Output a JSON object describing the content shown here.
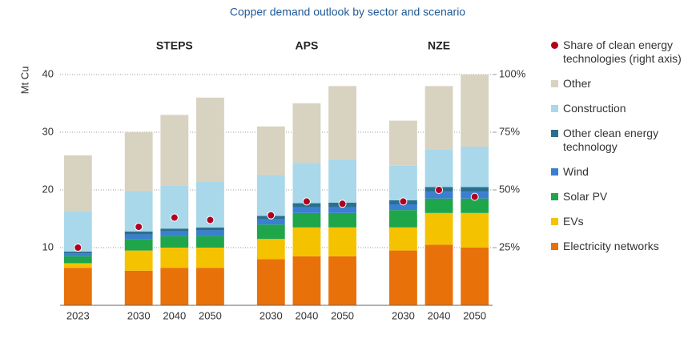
{
  "chart_data": {
    "type": "bar",
    "title": "Copper demand outlook by sector and scenario",
    "y_label": "Mt Cu",
    "groups": [
      "STEPS",
      "APS",
      "NZE"
    ],
    "categories": [
      "2023",
      "2030",
      "2040",
      "2050",
      "2030",
      "2040",
      "2050",
      "2030",
      "2040",
      "2050"
    ],
    "ylim": [
      0,
      40
    ],
    "yticks": [
      10,
      20,
      30,
      40
    ],
    "y2lim": [
      0,
      100
    ],
    "y2ticks": [
      {
        "value": 25,
        "label": "25%"
      },
      {
        "value": 50,
        "label": "50%"
      },
      {
        "value": 75,
        "label": "75%"
      },
      {
        "value": 100,
        "label": "100%"
      }
    ],
    "grid": true,
    "stacked": true,
    "series": [
      {
        "name": "Electricity networks",
        "color": "#e8710a",
        "values": [
          6.5,
          6,
          6.5,
          6.5,
          8,
          8.5,
          8.5,
          9.5,
          10.5,
          10
        ]
      },
      {
        "name": "EVs",
        "color": "#f5c200",
        "values": [
          0.8,
          3.5,
          3.5,
          3.5,
          3.5,
          5,
          5,
          4,
          5.5,
          6
        ]
      },
      {
        "name": "Solar PV",
        "color": "#1fa64a",
        "values": [
          1.2,
          2,
          2,
          2,
          2.5,
          2.5,
          2.5,
          3,
          2.5,
          2.5
        ]
      },
      {
        "name": "Wind",
        "color": "#3a7fd0",
        "values": [
          0.5,
          0.8,
          0.8,
          1,
          0.9,
          1,
          1,
          1,
          1.2,
          1.2
        ]
      },
      {
        "name": "Other clean energy technology",
        "color": "#2a6f8f",
        "values": [
          0.3,
          0.5,
          0.5,
          0.5,
          0.6,
          0.7,
          0.8,
          0.7,
          0.8,
          0.8
        ]
      },
      {
        "name": "Construction",
        "color": "#a8d8ea",
        "values": [
          7,
          7,
          7.5,
          8,
          7,
          7,
          7.5,
          6,
          6.5,
          7
        ]
      },
      {
        "name": "Other",
        "color": "#d8d2c0",
        "values": [
          9.7,
          10.2,
          12.2,
          14.5,
          8.5,
          10.3,
          12.7,
          7.8,
          11,
          12.5
        ]
      },
      {
        "name": "Share of clean energy technologies (right axis)",
        "color": "#b00020",
        "type": "scatter",
        "axis": "y2",
        "values": [
          25,
          34,
          38,
          37,
          39,
          45,
          44,
          45,
          50,
          47
        ]
      }
    ]
  }
}
